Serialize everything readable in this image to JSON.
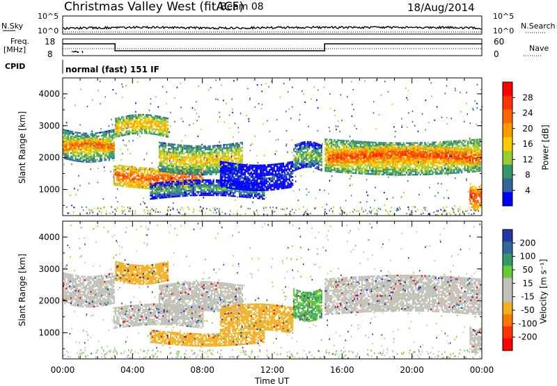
{
  "header": {
    "station": "Christmas Valley West (fitACF)",
    "beam": "Beam 08",
    "date": "18/Aug/2014"
  },
  "top_panels": {
    "nsky_label": "N.Sky",
    "nsearch_label": "N.Search",
    "noise_ticks": [
      "10^5",
      "10^0"
    ],
    "freq_label": "Freq.",
    "freq_unit": "[MHz]",
    "freq_ticks": [
      "18",
      "8"
    ],
    "nave_label": "Nave",
    "nave_ticks": [
      "60",
      "0"
    ],
    "cpid_label": "CPID",
    "cpid_value": "normal (fast) 151 IF"
  },
  "colorbars": {
    "power": {
      "label": "Power [dB]",
      "ticks": [
        "28",
        "24",
        "20",
        "16",
        "12",
        "8",
        "4"
      ],
      "colors": [
        "#ff0000",
        "#ff3300",
        "#ff6600",
        "#ff9900",
        "#ffcc00",
        "#99cc33",
        "#339966",
        "#336699",
        "#0000ff"
      ]
    },
    "velocity": {
      "label": "Velocity [m s⁻¹]",
      "ticks": [
        "200",
        "100",
        "50",
        "15",
        "-15",
        "-50",
        "-100",
        "-200"
      ],
      "colors": [
        "#1f3aa8",
        "#336699",
        "#339966",
        "#66cc33",
        "#c0c0b8",
        "#c0c0b8",
        "#f0b020",
        "#ff7700",
        "#ff3300",
        "#ff0000"
      ]
    }
  },
  "chart_data": [
    {
      "type": "heatmap",
      "name": "power",
      "ylabel": "Slant Range [km]",
      "xlabel": "",
      "x_ticks": [
        "00:00",
        "04:00",
        "08:00",
        "12:00",
        "16:00",
        "20:00",
        "00:00"
      ],
      "y_ticks": [
        1000,
        2000,
        3000,
        4000
      ],
      "ylim": [
        180,
        4500
      ],
      "xlim_hours": [
        0,
        24
      ],
      "echo_bands": [
        {
          "start_h": 0.0,
          "end_h": 2.9,
          "range_km": [
            2000,
            2900
          ],
          "power_db": 18
        },
        {
          "start_h": 0.0,
          "end_h": 2.9,
          "range_km": [
            2150,
            2500
          ],
          "power_db": 26
        },
        {
          "start_h": 2.9,
          "end_h": 8.0,
          "range_km": [
            1150,
            1800
          ],
          "power_db": 25
        },
        {
          "start_h": 3.0,
          "end_h": 6.0,
          "range_km": [
            2650,
            3250
          ],
          "power_db": 20
        },
        {
          "start_h": 5.5,
          "end_h": 10.3,
          "range_km": [
            1600,
            2500
          ],
          "power_db": 18
        },
        {
          "start_h": 5.0,
          "end_h": 11.5,
          "range_km": [
            700,
            1200
          ],
          "power_db": 12
        },
        {
          "start_h": 9.0,
          "end_h": 13.2,
          "range_km": [
            1100,
            1900
          ],
          "power_db": 6
        },
        {
          "start_h": 13.2,
          "end_h": 14.8,
          "range_km": [
            1600,
            2400
          ],
          "power_db": 14
        },
        {
          "start_h": 15.0,
          "end_h": 23.9,
          "range_km": [
            1600,
            2600
          ],
          "power_db": 20
        },
        {
          "start_h": 15.2,
          "end_h": 23.9,
          "range_km": [
            1750,
            2250
          ],
          "power_db": 27
        },
        {
          "start_h": 23.3,
          "end_h": 24.0,
          "range_km": [
            500,
            1200
          ],
          "power_db": 27
        }
      ]
    },
    {
      "type": "heatmap",
      "name": "velocity",
      "ylabel": "Slant Range [km]",
      "xlabel": "Time UT",
      "x_ticks": [
        "00:00",
        "04:00",
        "08:00",
        "12:00",
        "16:00",
        "20:00",
        "00:00"
      ],
      "y_ticks": [
        1000,
        2000,
        3000,
        4000
      ],
      "ylim": [
        180,
        4500
      ],
      "xlim_hours": [
        0,
        24
      ],
      "echo_bands": [
        {
          "start_h": 0.0,
          "end_h": 2.9,
          "range_km": [
            1950,
            2900
          ],
          "velocity": 0
        },
        {
          "start_h": 2.9,
          "end_h": 8.0,
          "range_km": [
            1150,
            1800
          ],
          "velocity": 0
        },
        {
          "start_h": 3.0,
          "end_h": 6.0,
          "range_km": [
            2650,
            3250
          ],
          "velocity": -50
        },
        {
          "start_h": 5.5,
          "end_h": 10.3,
          "range_km": [
            1600,
            2500
          ],
          "velocity": 0
        },
        {
          "start_h": 5.0,
          "end_h": 11.5,
          "range_km": [
            700,
            1100
          ],
          "velocity": -40
        },
        {
          "start_h": 9.0,
          "end_h": 13.2,
          "range_km": [
            1000,
            1800
          ],
          "velocity": -40
        },
        {
          "start_h": 13.2,
          "end_h": 14.8,
          "range_km": [
            1500,
            2400
          ],
          "velocity": 30
        },
        {
          "start_h": 15.0,
          "end_h": 23.9,
          "range_km": [
            1600,
            2700
          ],
          "velocity": 0
        },
        {
          "start_h": 23.3,
          "end_h": 24.0,
          "range_km": [
            500,
            1200
          ],
          "velocity": 0
        }
      ]
    }
  ]
}
